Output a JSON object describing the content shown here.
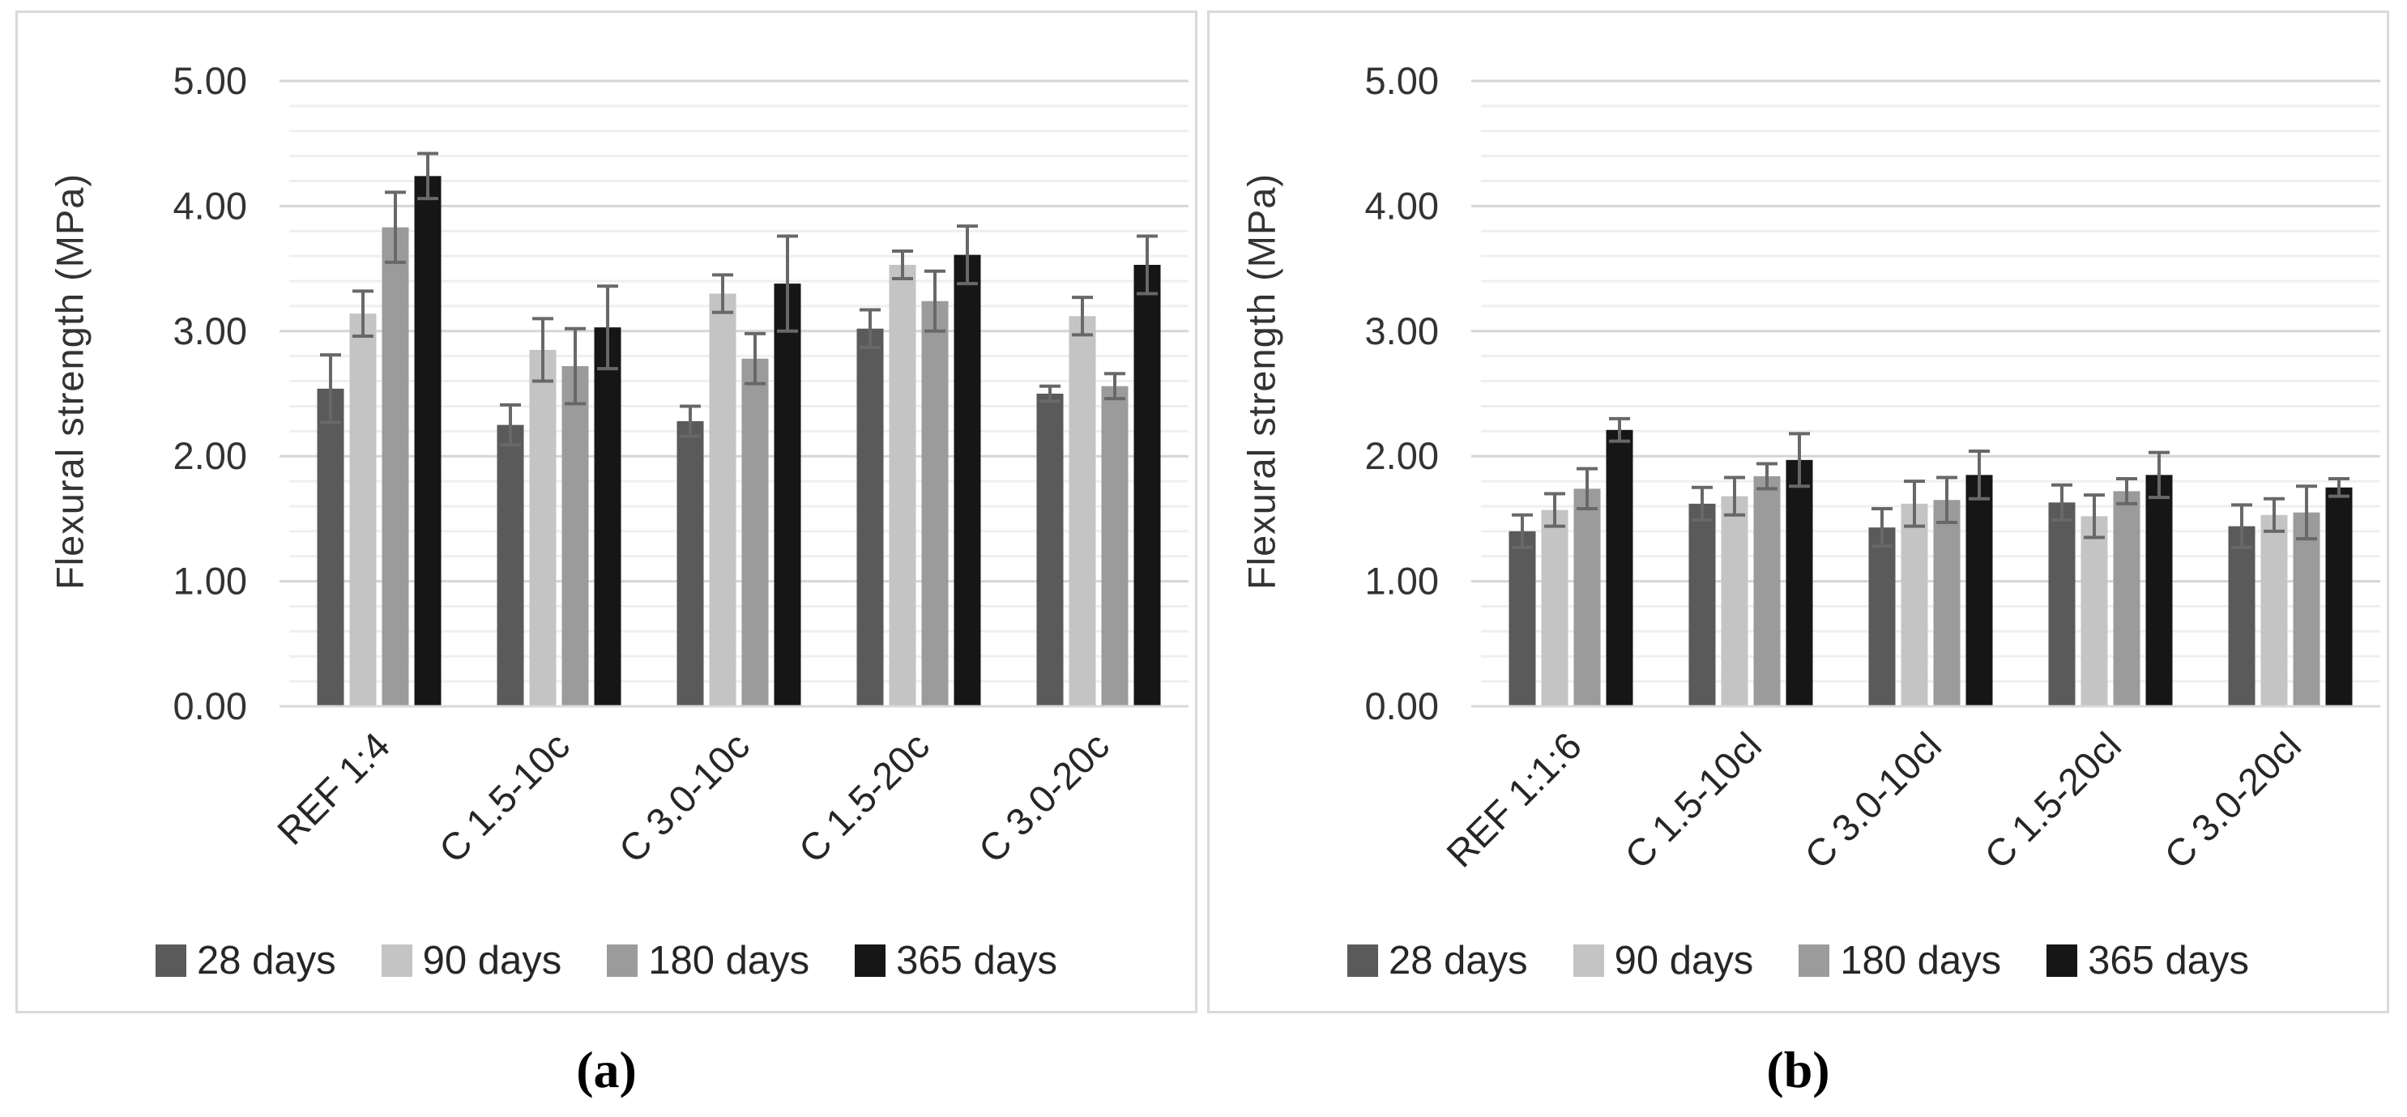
{
  "figure": {
    "captions": {
      "a": "(a)",
      "b": "(b)"
    }
  },
  "style": {
    "panel_border_color": "#d9d9d9",
    "major_gridline_color": "#d6d6d6",
    "minor_gridline_color": "#efefef",
    "axis_line_color": "#d9d9d9",
    "error_bar_color": "#686868",
    "text_color": "#333333"
  },
  "chart_data": [
    {
      "id": "a",
      "type": "bar",
      "title": "",
      "xlabel": "",
      "ylabel": "Flexural strength (MPa)",
      "ylim": [
        0,
        5
      ],
      "y_ticks": [
        "0.00",
        "1.00",
        "2.00",
        "3.00",
        "4.00",
        "5.00"
      ],
      "y_major_step": 1.0,
      "y_minor_step": 0.2,
      "grid": true,
      "legend_position": "bottom",
      "error_bars": "symmetric",
      "categories": [
        "REF 1:4",
        "C 1.5-10c",
        "C 3.0-10c",
        "C 1.5-20c",
        "C 3.0-20c"
      ],
      "series": [
        {
          "name": "28 days",
          "color": "#5a5a5a",
          "values": [
            2.54,
            2.25,
            2.28,
            3.02,
            2.5
          ],
          "errors": [
            0.27,
            0.16,
            0.12,
            0.15,
            0.06
          ]
        },
        {
          "name": "90 days",
          "color": "#c4c4c4",
          "values": [
            3.14,
            2.85,
            3.3,
            3.53,
            3.12
          ],
          "errors": [
            0.18,
            0.25,
            0.15,
            0.11,
            0.15
          ]
        },
        {
          "name": "180 days",
          "color": "#9b9b9b",
          "values": [
            3.83,
            2.72,
            2.78,
            3.24,
            2.56
          ],
          "errors": [
            0.28,
            0.3,
            0.2,
            0.24,
            0.1
          ]
        },
        {
          "name": "365 days",
          "color": "#161616",
          "values": [
            4.24,
            3.03,
            3.38,
            3.61,
            3.53
          ],
          "errors": [
            0.18,
            0.33,
            0.38,
            0.23,
            0.23
          ]
        }
      ]
    },
    {
      "id": "b",
      "type": "bar",
      "title": "",
      "xlabel": "",
      "ylabel": "Flexural strength (MPa)",
      "ylim": [
        0,
        5
      ],
      "y_ticks": [
        "0.00",
        "1.00",
        "2.00",
        "3.00",
        "4.00",
        "5.00"
      ],
      "y_major_step": 1.0,
      "y_minor_step": 0.2,
      "grid": true,
      "legend_position": "bottom",
      "error_bars": "symmetric",
      "categories": [
        "REF 1:1:6",
        "C 1.5-10cl",
        "C 3.0-10cl",
        "C 1.5-20cl",
        "C 3.0-20cl"
      ],
      "series": [
        {
          "name": "28 days",
          "color": "#5a5a5a",
          "values": [
            1.4,
            1.62,
            1.43,
            1.63,
            1.44
          ],
          "errors": [
            0.13,
            0.13,
            0.15,
            0.14,
            0.17
          ]
        },
        {
          "name": "90 days",
          "color": "#c4c4c4",
          "values": [
            1.57,
            1.68,
            1.62,
            1.52,
            1.53
          ],
          "errors": [
            0.13,
            0.15,
            0.18,
            0.17,
            0.13
          ]
        },
        {
          "name": "180 days",
          "color": "#9b9b9b",
          "values": [
            1.74,
            1.84,
            1.65,
            1.72,
            1.55
          ],
          "errors": [
            0.16,
            0.1,
            0.18,
            0.1,
            0.21
          ]
        },
        {
          "name": "365 days",
          "color": "#161616",
          "values": [
            2.21,
            1.97,
            1.85,
            1.85,
            1.75
          ],
          "errors": [
            0.09,
            0.21,
            0.19,
            0.18,
            0.07
          ]
        }
      ]
    }
  ]
}
